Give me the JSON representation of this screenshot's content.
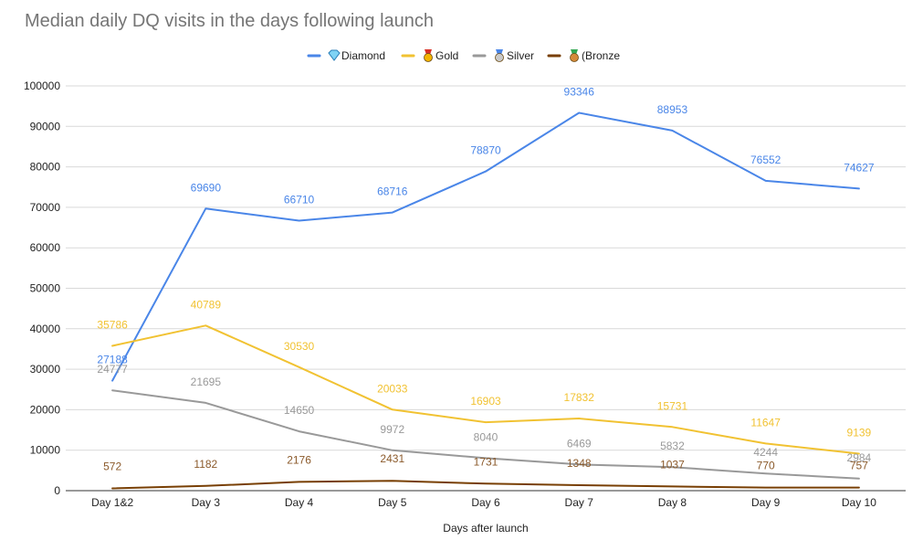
{
  "chart_data": {
    "type": "line",
    "title": "Median daily DQ visits in the days following launch",
    "xlabel": "Days after launch",
    "ylabel": "",
    "categories": [
      "Day 1&2",
      "Day 3",
      "Day 4",
      "Day 5",
      "Day 6",
      "Day 7",
      "Day 8",
      "Day 9",
      "Day 10"
    ],
    "ylim": [
      0,
      100000
    ],
    "yticks": [
      "0",
      "10000",
      "20000",
      "30000",
      "40000",
      "50000",
      "60000",
      "70000",
      "80000",
      "90000",
      "100000"
    ],
    "grid": true,
    "legend_position": "top",
    "series": [
      {
        "name": "Diamond",
        "legend_label": "💎Diamond",
        "icon": "diamond-gem-icon",
        "color": "#4a86e8",
        "values": [
          27188,
          69690,
          66710,
          68716,
          78870,
          93346,
          88953,
          76552,
          74627
        ]
      },
      {
        "name": "Gold",
        "legend_label": "🏅Gold",
        "icon": "gold-medal-icon",
        "color": "#f1c232",
        "values": [
          35786,
          40789,
          30530,
          20033,
          16903,
          17832,
          15731,
          11647,
          9139
        ]
      },
      {
        "name": "Silver",
        "legend_label": "🏅Silver",
        "icon": "silver-medal-icon",
        "color": "#999999",
        "values": [
          24777,
          21695,
          14650,
          9972,
          8040,
          6469,
          5832,
          4244,
          2984
        ]
      },
      {
        "name": "(Bronze",
        "legend_label": "🏅(Bronze",
        "icon": "bronze-medal-icon",
        "color": "#783f04",
        "label_color": "#8b5a2b",
        "values": [
          572,
          1182,
          2176,
          2431,
          1731,
          1348,
          1037,
          770,
          757
        ]
      }
    ]
  }
}
